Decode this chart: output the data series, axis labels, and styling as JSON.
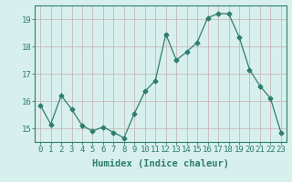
{
  "x": [
    0,
    1,
    2,
    3,
    4,
    5,
    6,
    7,
    8,
    9,
    10,
    11,
    12,
    13,
    14,
    15,
    16,
    17,
    18,
    19,
    20,
    21,
    22,
    23
  ],
  "y": [
    15.85,
    15.15,
    16.2,
    15.7,
    15.1,
    14.9,
    15.05,
    14.85,
    14.65,
    15.55,
    16.35,
    16.75,
    18.45,
    17.5,
    17.8,
    18.15,
    19.05,
    19.2,
    19.2,
    18.35,
    17.15,
    16.55,
    16.1,
    14.85
  ],
  "line_color": "#2e7d6e",
  "marker": "D",
  "marker_size": 2.5,
  "bg_color": "#d7f0ee",
  "grid_color": "#c8b8b8",
  "spine_color": "#2e7d6e",
  "tick_color": "#2e7d6e",
  "xlabel": "Humidex (Indice chaleur)",
  "ylim": [
    14.5,
    19.5
  ],
  "xlim": [
    -0.5,
    23.5
  ],
  "yticks": [
    15,
    16,
    17,
    18,
    19
  ],
  "xticks": [
    0,
    1,
    2,
    3,
    4,
    5,
    6,
    7,
    8,
    9,
    10,
    11,
    12,
    13,
    14,
    15,
    16,
    17,
    18,
    19,
    20,
    21,
    22,
    23
  ],
  "xtick_labels": [
    "0",
    "1",
    "2",
    "3",
    "4",
    "5",
    "6",
    "7",
    "8",
    "9",
    "10",
    "11",
    "12",
    "13",
    "14",
    "15",
    "16",
    "17",
    "18",
    "19",
    "20",
    "21",
    "22",
    "23"
  ],
  "xlabel_fontsize": 7.5,
  "tick_fontsize": 6.5,
  "label_color": "#2e7d6e",
  "linewidth": 0.9
}
